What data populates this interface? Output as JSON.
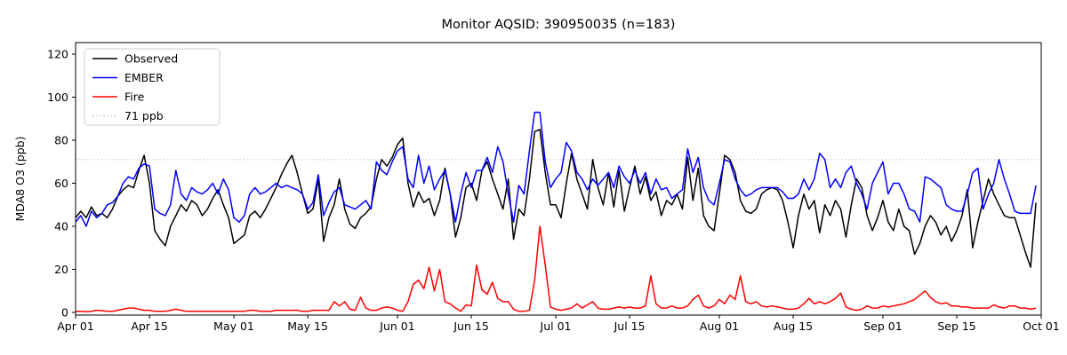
{
  "figure": {
    "background": "#ffffff",
    "title": "Monitor AQSID: 390950035 (n=183)"
  },
  "chart_data": {
    "type": "line",
    "title": "Monitor AQSID: 390950035 (n=183)",
    "xlabel": "",
    "ylabel": "MDA8 O3 (ppb)",
    "n_days": 183,
    "x_range": [
      "Apr 01",
      "Oct 01"
    ],
    "ylim": [
      -1.2,
      126.6
    ],
    "yticks": [
      0,
      20,
      40,
      60,
      80,
      100,
      120
    ],
    "xticks": [
      {
        "day": 0,
        "label": "Apr 01"
      },
      {
        "day": 14,
        "label": "Apr 15"
      },
      {
        "day": 30,
        "label": "May 01"
      },
      {
        "day": 44,
        "label": "May 15"
      },
      {
        "day": 61,
        "label": "Jun 01"
      },
      {
        "day": 75,
        "label": "Jun 15"
      },
      {
        "day": 91,
        "label": "Jul 01"
      },
      {
        "day": 105,
        "label": "Jul 15"
      },
      {
        "day": 122,
        "label": "Aug 01"
      },
      {
        "day": 136,
        "label": "Aug 15"
      },
      {
        "day": 153,
        "label": "Sep 01"
      },
      {
        "day": 167,
        "label": "Sep 15"
      },
      {
        "day": 183,
        "label": "Oct 01"
      }
    ],
    "grid": false,
    "threshold": {
      "label": "71 ppb",
      "value": 71,
      "color": "#c8c8c8",
      "style": "dotted"
    },
    "legend": {
      "position": "upper-left",
      "entries": [
        "Observed",
        "EMBER",
        "Fire",
        "71 ppb"
      ]
    },
    "series": [
      {
        "name": "Observed",
        "color": "#000000",
        "values": [
          44,
          47,
          44,
          49,
          45,
          46,
          44,
          48,
          54,
          57,
          59,
          58,
          66,
          73,
          60,
          38,
          34,
          31,
          40,
          45,
          50,
          47,
          52,
          50,
          45,
          48,
          53,
          57,
          50,
          44,
          32,
          34,
          36,
          45,
          47,
          44,
          48,
          53,
          58,
          64,
          69,
          73,
          65,
          55,
          46,
          48,
          62,
          33,
          44,
          50,
          62,
          48,
          41,
          39,
          44,
          46,
          49,
          62,
          71,
          68,
          72,
          78,
          81,
          60,
          49,
          56,
          51,
          53,
          45,
          52,
          67,
          55,
          35,
          44,
          58,
          60,
          52,
          66,
          70,
          62,
          55,
          48,
          62,
          34,
          48,
          45,
          62,
          84,
          85,
          65,
          50,
          50,
          44,
          60,
          74,
          62,
          55,
          48,
          71,
          58,
          50,
          65,
          49,
          66,
          47,
          58,
          68,
          55,
          63,
          52,
          56,
          45,
          52,
          50,
          55,
          48,
          72,
          52,
          67,
          45,
          40,
          38,
          55,
          73,
          71,
          65,
          52,
          47,
          46,
          48,
          55,
          57,
          58,
          57,
          52,
          42,
          30,
          45,
          55,
          48,
          52,
          37,
          50,
          45,
          52,
          48,
          35,
          50,
          62,
          58,
          45,
          38,
          44,
          52,
          42,
          38,
          48,
          40,
          38,
          27,
          32,
          40,
          45,
          42,
          36,
          40,
          33,
          38,
          45,
          57,
          30,
          42,
          52,
          62,
          55,
          50,
          45,
          44,
          44,
          36,
          28,
          21,
          51
        ]
      },
      {
        "name": "EMBER",
        "color": "#0000ff",
        "values": [
          42,
          45,
          40,
          47,
          44,
          46,
          50,
          51,
          54,
          60,
          63,
          62,
          67,
          69,
          68,
          48,
          46,
          45,
          50,
          66,
          55,
          52,
          58,
          56,
          55,
          57,
          60,
          55,
          62,
          57,
          44,
          42,
          45,
          55,
          58,
          55,
          56,
          58,
          60,
          58,
          59,
          58,
          57,
          55,
          48,
          51,
          64,
          45,
          51,
          56,
          58,
          50,
          49,
          48,
          50,
          52,
          48,
          70,
          66,
          64,
          70,
          75,
          77,
          62,
          58,
          73,
          60,
          68,
          57,
          62,
          66,
          55,
          42,
          55,
          65,
          58,
          66,
          66,
          72,
          65,
          77,
          70,
          55,
          42,
          59,
          55,
          75,
          93,
          93,
          70,
          58,
          62,
          65,
          79,
          75,
          65,
          62,
          57,
          62,
          59,
          62,
          65,
          58,
          68,
          63,
          60,
          66,
          60,
          65,
          55,
          62,
          57,
          58,
          53,
          55,
          57,
          76,
          65,
          72,
          58,
          52,
          50,
          60,
          71,
          70,
          62,
          57,
          54,
          55,
          57,
          58,
          58,
          58,
          58,
          56,
          53,
          53,
          55,
          62,
          57,
          62,
          74,
          71,
          58,
          62,
          58,
          65,
          68,
          60,
          55,
          48,
          60,
          65,
          70,
          55,
          60,
          60,
          55,
          48,
          47,
          42,
          63,
          62,
          60,
          58,
          50,
          48,
          47,
          47,
          55,
          65,
          67,
          48,
          55,
          60,
          71,
          62,
          55,
          47,
          46,
          46,
          46,
          59
        ]
      },
      {
        "name": "Fire",
        "color": "#ff0000",
        "values": [
          0.5,
          0.5,
          0.3,
          0.5,
          1,
          0.8,
          0.5,
          0.5,
          1,
          1.5,
          2,
          2,
          1.5,
          1,
          1,
          0.5,
          0.5,
          0.5,
          1,
          1.5,
          1,
          0.5,
          0.5,
          0.5,
          0.5,
          0.5,
          0.5,
          0.5,
          0.5,
          0.5,
          0.5,
          0.5,
          0.5,
          1,
          1,
          0.5,
          0.5,
          0.5,
          1,
          1,
          1,
          1,
          1,
          0.5,
          0.5,
          1,
          1,
          1,
          1,
          5,
          3,
          5,
          1.5,
          1,
          7,
          2,
          1,
          1,
          2,
          2.5,
          2,
          1,
          0.5,
          5,
          13,
          15,
          11,
          21,
          10,
          20,
          5,
          4,
          2,
          0.5,
          3.5,
          3,
          22,
          10.5,
          8.5,
          14,
          6.5,
          5,
          5,
          1.5,
          0.5,
          0.5,
          1,
          15,
          40,
          22,
          2.5,
          1.5,
          1,
          1.5,
          2,
          4,
          2,
          3.5,
          5,
          2,
          1.5,
          1.5,
          2,
          2.5,
          2,
          2.5,
          2,
          2,
          3,
          17,
          4,
          2,
          2,
          3,
          2,
          2,
          3,
          6,
          8,
          3,
          2,
          3,
          6,
          4,
          8,
          6,
          17,
          5,
          4,
          5,
          3,
          2.5,
          3,
          2.5,
          2,
          1.5,
          1.5,
          2,
          4,
          6.5,
          4,
          5,
          4,
          5,
          6.5,
          9,
          2.5,
          1.5,
          1,
          1.5,
          3,
          2,
          2,
          3,
          2.5,
          3,
          3.5,
          4,
          5,
          6,
          8,
          10,
          7,
          5,
          4,
          4.5,
          3,
          3,
          2.5,
          2.5,
          2,
          2,
          2,
          2,
          3.5,
          2.5,
          2,
          3,
          3,
          2,
          2,
          1.5,
          2
        ]
      }
    ]
  }
}
